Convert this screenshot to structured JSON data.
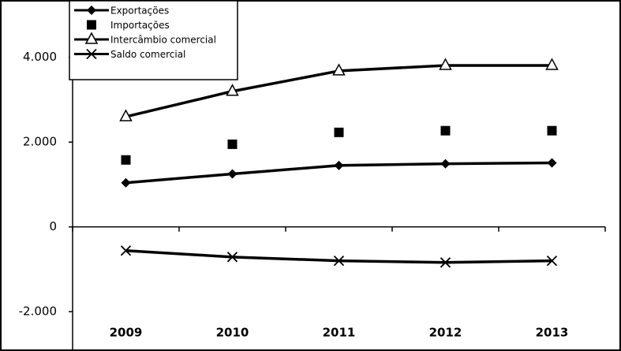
{
  "chart_data": {
    "type": "line",
    "categories": [
      "2009",
      "2010",
      "2011",
      "2012",
      "2013"
    ],
    "series": [
      {
        "name": "Exportações",
        "color": "#000000",
        "marker": "diamond",
        "line": true,
        "values": [
          1040,
          1250,
          1450,
          1490,
          1510
        ]
      },
      {
        "name": "Importações",
        "color": "#000000",
        "marker": "square",
        "line": false,
        "values": [
          1580,
          1950,
          2230,
          2270,
          2270
        ]
      },
      {
        "name": "Intercâmbio comercial",
        "color": "#000000",
        "marker": "triangle",
        "line": true,
        "values": [
          2600,
          3200,
          3680,
          3810,
          3810
        ]
      },
      {
        "name": "Saldo comercial",
        "color": "#000000",
        "marker": "x",
        "line": true,
        "values": [
          -560,
          -710,
          -800,
          -840,
          -800
        ]
      }
    ],
    "ylim": [
      -2500,
      5000
    ],
    "yticks": [
      {
        "value": -2000,
        "label": "-2.000"
      },
      0,
      {
        "value": 2000,
        "label": "2.000"
      },
      {
        "value": 4000,
        "label": "4.000"
      }
    ],
    "grid": false,
    "legend": "top-left"
  }
}
